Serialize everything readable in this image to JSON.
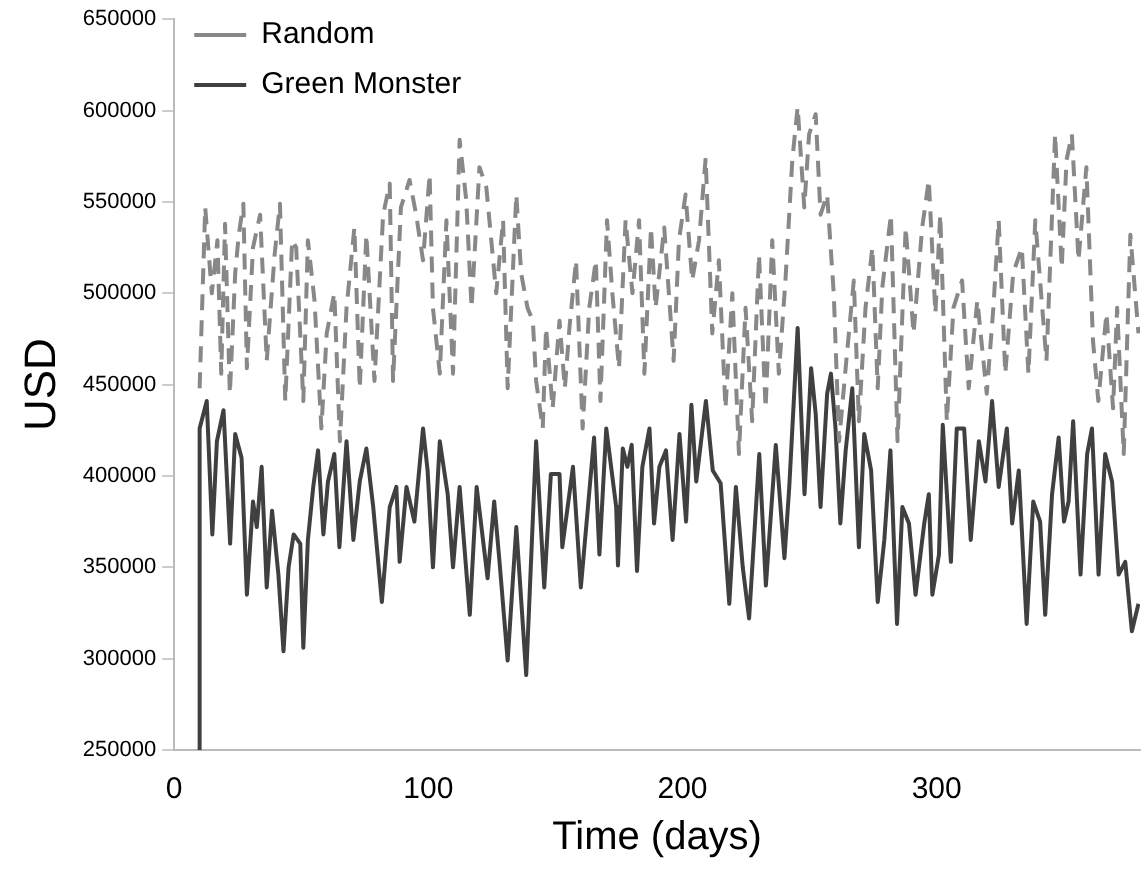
{
  "chart_data": {
    "type": "line",
    "xlabel": "Time (days)",
    "ylabel": "USD",
    "xlim": [
      0,
      380
    ],
    "xticks": [
      0,
      100,
      200,
      300
    ],
    "ylim": [
      250000,
      650000
    ],
    "yticks": [
      250000,
      300000,
      350000,
      400000,
      450000,
      500000,
      550000,
      600000,
      650000
    ],
    "grid": false,
    "legend": "top left",
    "marker": "none",
    "series": [
      {
        "name": "Random",
        "color": "#888888",
        "line_style": "dashed",
        "x": [
          10,
          12.2,
          14.8,
          17,
          18.5,
          20,
          21.9,
          24,
          25.4,
          27.2,
          28.6,
          31,
          33.8,
          36.4,
          39.5,
          41.6,
          43.7,
          46.4,
          48,
          50.8,
          52.6,
          55.2,
          57.9,
          60,
          63,
          65.2,
          67.8,
          70.9,
          73,
          75.6,
          78.8,
          82.2,
          84.8,
          86.1,
          89.2,
          92.6,
          95.2,
          97.9,
          100.5,
          101.8,
          104.5,
          107.1,
          109.7,
          112.3,
          114.9,
          117,
          120.1,
          122.8,
          126.7,
          129.4,
          131.2,
          134.6,
          136.5,
          139,
          141.1,
          142.4,
          145,
          146.3,
          148.9,
          151.6,
          153.7,
          155.5,
          158.1,
          160.7,
          163.3,
          165.9,
          167.7,
          170.3,
          172.4,
          175,
          177.6,
          180.3,
          182.9,
          185,
          187.6,
          189.4,
          192.8,
          196.5,
          198.6,
          201.2,
          203.8,
          206.5,
          209.1,
          211.7,
          214.3,
          216.9,
          219.6,
          222.2,
          224.8,
          227.4,
          230.1,
          232.7,
          235.3,
          237.9,
          240.5,
          243.2,
          245.3,
          247.9,
          249.8,
          252.4,
          254.3,
          256.9,
          259.5,
          261.6,
          264.7,
          267.4,
          269.4,
          272,
          274.7,
          276.8,
          278.6,
          282,
          284.6,
          287.8,
          290.9,
          294.3,
          296.9,
          299.5,
          301.4,
          304,
          306.6,
          310,
          312.6,
          316,
          319.7,
          322.3,
          324.4,
          327,
          330.1,
          333.5,
          336.1,
          338.8,
          343.2,
          346.6,
          349.2,
          351.1,
          353.2,
          355.8,
          358.9,
          361.5,
          363.6,
          366.8,
          369.4,
          371,
          373.6,
          376.2,
          379.4
        ],
        "values": [
          448000,
          547000,
          500000,
          529000,
          456000,
          538000,
          445000,
          511000,
          532000,
          549000,
          459000,
          525000,
          543000,
          463000,
          521000,
          549000,
          441000,
          529000,
          525000,
          441000,
          529000,
          496000,
          426000,
          478000,
          500000,
          419000,
          492000,
          536000,
          448000,
          532000,
          452000,
          543000,
          560000,
          452000,
          547000,
          562000,
          543000,
          518000,
          565000,
          492000,
          456000,
          540000,
          456000,
          584000,
          551000,
          492000,
          569000,
          558000,
          500000,
          540000,
          448000,
          554000,
          511000,
          492000,
          485000,
          452000,
          426000,
          481000,
          437000,
          485000,
          448000,
          481000,
          518000,
          426000,
          492000,
          518000,
          441000,
          540000,
          500000,
          459000,
          540000,
          500000,
          540000,
          456000,
          536000,
          492000,
          536000,
          463000,
          529000,
          554000,
          507000,
          529000,
          574000,
          478000,
          518000,
          437000,
          500000,
          412000,
          492000,
          430000,
          521000,
          437000,
          529000,
          456000,
          507000,
          573000,
          602000,
          547000,
          587000,
          598000,
          543000,
          554000,
          500000,
          419000,
          467000,
          507000,
          430000,
          492000,
          525000,
          448000,
          503000,
          543000,
          419000,
          536000,
          478000,
          536000,
          562000,
          489000,
          543000,
          430000,
          492000,
          507000,
          448000,
          496000,
          445000,
          492000,
          540000,
          456000,
          511000,
          525000,
          456000,
          540000,
          463000,
          587000,
          514000,
          573000,
          587000,
          518000,
          569000,
          474000,
          441000,
          489000,
          437000,
          492000,
          412000,
          532000,
          478000
        ]
      },
      {
        "name": "Green Monster",
        "color": "#404040",
        "line_style": "solid",
        "x": [
          10,
          10,
          12.8,
          15,
          16.8,
          19.4,
          22,
          24,
          26.5,
          28.6,
          31,
          32.5,
          34.4,
          36.4,
          38.5,
          41,
          43,
          45,
          47,
          49.6,
          50.8,
          52.6,
          54.7,
          56.6,
          58.7,
          60.5,
          63,
          65,
          67.8,
          70.5,
          73,
          75.6,
          78.3,
          81.7,
          84.8,
          87.4,
          88.7,
          91.4,
          94.5,
          97.9,
          99.7,
          101.8,
          104.5,
          107.6,
          109.7,
          112.3,
          116.3,
          119,
          123.3,
          125.9,
          128,
          131.2,
          134.6,
          138.5,
          142.4,
          145.6,
          148.2,
          151.6,
          152.7,
          156.9,
          160,
          165.2,
          167.3,
          170,
          173.9,
          174.6,
          176.5,
          178.3,
          180,
          182.1,
          184.2,
          187,
          188.8,
          190.9,
          193.5,
          196.1,
          198.8,
          201.4,
          203.5,
          205.4,
          206.7,
          209.2,
          211.9,
          215,
          218.4,
          221,
          223.7,
          226.2,
          230.2,
          232.8,
          236.7,
          240.1,
          242,
          245.3,
          248,
          250.6,
          252.4,
          254.3,
          256.9,
          258.4,
          260.2,
          262.1,
          264.2,
          266.8,
          269.4,
          271.5,
          274.2,
          276.8,
          279.4,
          281.8,
          284.4,
          286.5,
          289.1,
          291.7,
          295.1,
          296.9,
          298.3,
          300.9,
          302.4,
          305.6,
          307.9,
          310.8,
          313.4,
          316.6,
          319.2,
          321.8,
          324.4,
          327.6,
          329.7,
          332.3,
          335.4,
          338,
          340.7,
          342.7,
          345.4,
          348,
          350.1,
          351.9,
          353.7,
          356.6,
          359.2,
          361.1,
          363.7,
          366.3,
          369,
          371.6,
          374.2,
          376.8,
          379.4
        ],
        "values": [
          250000,
          426000,
          441000,
          368000,
          419000,
          436000,
          363000,
          423000,
          410000,
          335000,
          386000,
          372000,
          405000,
          339000,
          381000,
          346000,
          304000,
          350000,
          368000,
          363000,
          306000,
          365000,
          394000,
          414000,
          368000,
          397000,
          412000,
          361000,
          419000,
          365000,
          397000,
          415000,
          383000,
          331000,
          383000,
          394000,
          353000,
          394000,
          375000,
          426000,
          403000,
          350000,
          419000,
          390000,
          350000,
          394000,
          324000,
          394000,
          344000,
          386000,
          353000,
          299000,
          372000,
          291000,
          419000,
          339000,
          401000,
          401000,
          361000,
          405000,
          339000,
          421000,
          357000,
          426000,
          383000,
          351000,
          415000,
          405000,
          417000,
          348000,
          405000,
          426000,
          374000,
          405000,
          414000,
          365000,
          423000,
          375000,
          439000,
          397000,
          412000,
          441000,
          403000,
          396000,
          330000,
          394000,
          350000,
          322000,
          412000,
          340000,
          417000,
          355000,
          394000,
          481000,
          390000,
          459000,
          434000,
          383000,
          445000,
          456000,
          426000,
          374000,
          414000,
          448000,
          361000,
          423000,
          403000,
          331000,
          365000,
          414000,
          319000,
          383000,
          374000,
          335000,
          374000,
          390000,
          335000,
          357000,
          428000,
          353000,
          426000,
          426000,
          365000,
          419000,
          397000,
          441000,
          394000,
          426000,
          374000,
          403000,
          319000,
          386000,
          375000,
          324000,
          390000,
          421000,
          375000,
          386000,
          430000,
          346000,
          412000,
          426000,
          346000,
          412000,
          397000,
          346000,
          353000,
          315000,
          330000
        ]
      }
    ]
  }
}
